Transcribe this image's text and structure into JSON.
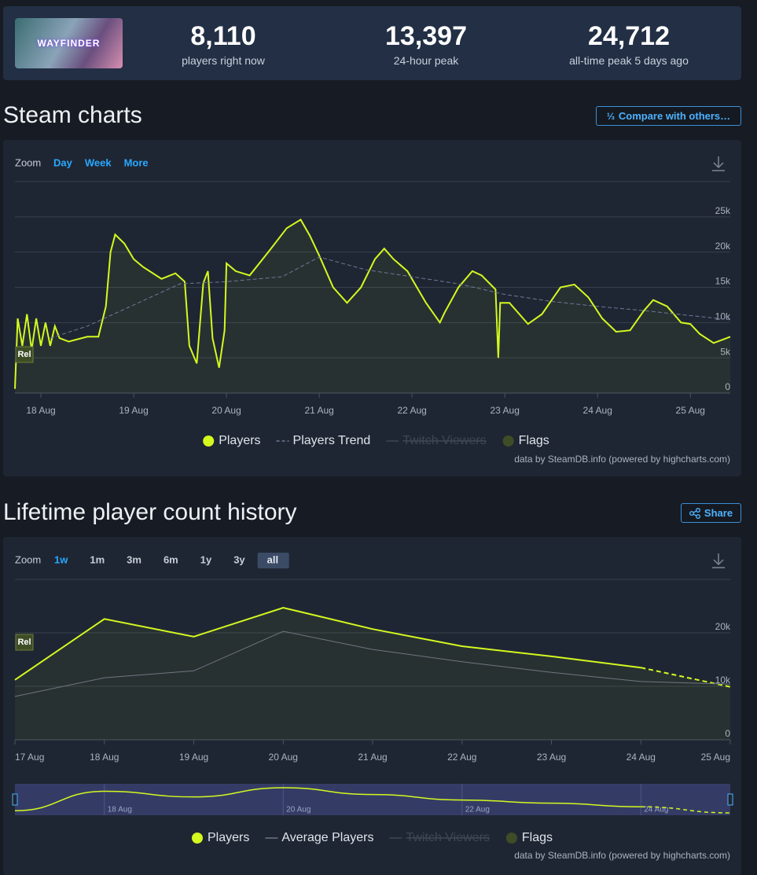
{
  "header": {
    "thumbnail_text": "WAYFINDER",
    "stats": [
      {
        "value": "8,110",
        "label": "players right now"
      },
      {
        "value": "13,397",
        "label": "24-hour peak"
      },
      {
        "value": "24,712",
        "label": "all-time peak 5 days ago"
      }
    ]
  },
  "sections": [
    {
      "title": "Steam charts",
      "button": "Compare with others…",
      "button_icon": "⅓"
    },
    {
      "title": "Lifetime player count history",
      "button": "Share"
    }
  ],
  "chart_data": [
    {
      "type": "line",
      "zoom_label": "Zoom",
      "zoom_options": [
        "Day",
        "Week",
        "More"
      ],
      "xlim": [
        -0.28,
        7.43
      ],
      "xticks": [
        {
          "value": 0,
          "label": "18 Aug"
        },
        {
          "value": 1,
          "label": "19 Aug"
        },
        {
          "value": 2,
          "label": "20 Aug"
        },
        {
          "value": 3,
          "label": "21 Aug"
        },
        {
          "value": 4,
          "label": "22 Aug"
        },
        {
          "value": 5,
          "label": "23 Aug"
        },
        {
          "value": 6,
          "label": "24 Aug"
        },
        {
          "value": 7,
          "label": "25 Aug"
        }
      ],
      "ylim": [
        0,
        30000
      ],
      "yticks": [
        0,
        {
          "value": 5000,
          "label": "5k"
        },
        {
          "value": 10000,
          "label": "10k"
        },
        {
          "value": 15000,
          "label": "15k"
        },
        {
          "value": 20000,
          "label": "20k"
        },
        {
          "value": 25000,
          "label": "25k"
        }
      ],
      "grid": true,
      "flag": {
        "label": "Rel",
        "x": -0.28
      },
      "series": [
        {
          "name": "Players",
          "color": "#d4f91f",
          "x": [
            -0.28,
            -0.25,
            -0.2,
            -0.15,
            -0.1,
            -0.05,
            0,
            0.05,
            0.1,
            0.15,
            0.2,
            0.3,
            0.5,
            0.62,
            0.7,
            0.75,
            0.8,
            0.9,
            1,
            1.1,
            1.3,
            1.45,
            1.55,
            1.6,
            1.68,
            1.75,
            1.8,
            1.85,
            1.92,
            1.98,
            2,
            2.1,
            2.25,
            2.45,
            2.65,
            2.8,
            2.9,
            3,
            3.15,
            3.3,
            3.45,
            3.6,
            3.7,
            3.8,
            3.95,
            4.15,
            4.3,
            4.35,
            4.5,
            4.65,
            4.75,
            4.9,
            4.93,
            4.95,
            5.05,
            5.25,
            5.4,
            5.6,
            5.75,
            5.9,
            6.05,
            6.2,
            6.35,
            6.5,
            6.6,
            6.75,
            6.9,
            7,
            7.1,
            7.25,
            7.35,
            7.43
          ],
          "values": [
            600,
            10600,
            6700,
            11200,
            6100,
            10600,
            6700,
            10000,
            6700,
            9500,
            7800,
            7300,
            8000,
            8000,
            12300,
            20000,
            22500,
            21200,
            19000,
            17900,
            16200,
            17000,
            15800,
            6700,
            4200,
            15600,
            17300,
            7800,
            3600,
            8900,
            18400,
            17300,
            16700,
            20000,
            23400,
            24600,
            22300,
            19500,
            15000,
            12800,
            15000,
            19000,
            20500,
            19000,
            17300,
            12800,
            10000,
            11400,
            15000,
            17300,
            16700,
            14700,
            5000,
            12800,
            12800,
            9800,
            11200,
            15000,
            15400,
            13600,
            10600,
            8700,
            8900,
            11700,
            13200,
            12300,
            10000,
            9800,
            8400,
            7100,
            7600,
            8000
          ]
        },
        {
          "name": "Players Trend",
          "color": "#6b7a96",
          "dashed": true,
          "x": [
            0.1,
            0.5,
            1,
            1.5,
            2,
            2.6,
            3,
            3.5,
            4,
            4.5,
            5,
            5.5,
            6,
            6.5,
            7,
            7.43
          ],
          "values": [
            7800,
            9500,
            12500,
            15500,
            15800,
            16500,
            19300,
            17500,
            16500,
            15500,
            14000,
            13000,
            12300,
            11700,
            11000,
            10400
          ]
        }
      ],
      "legend_extra": [
        {
          "name": "Twitch Viewers",
          "hidden": true
        },
        {
          "name": "Flags",
          "color": "#3f4d26"
        }
      ],
      "credit": "data by SteamDB.info (powered by highcharts.com)"
    },
    {
      "type": "line",
      "zoom_label": "Zoom",
      "zoom_options": [
        "1w",
        "1m",
        "3m",
        "6m",
        "1y",
        "3y",
        "all"
      ],
      "zoom_selected": "all",
      "categories": [
        "17 Aug",
        "18 Aug",
        "19 Aug",
        "20 Aug",
        "21 Aug",
        "22 Aug",
        "23 Aug",
        "24 Aug",
        "25 Aug"
      ],
      "ylim": [
        0,
        30000
      ],
      "yticks": [
        0,
        {
          "value": 10000,
          "label": "10k"
        },
        {
          "value": 20000,
          "label": "20k"
        }
      ],
      "grid": true,
      "flag": {
        "label": "Rel",
        "x": 0
      },
      "series": [
        {
          "name": "Players",
          "color": "#d4f91f",
          "dashed_tail": true,
          "values": [
            11200,
            22600,
            19300,
            24700,
            20700,
            17500,
            15600,
            13500,
            9900
          ]
        },
        {
          "name": "Average Players",
          "color": "#6f7580",
          "values": [
            8100,
            11600,
            12900,
            20300,
            16900,
            14600,
            12600,
            10900,
            10400
          ]
        }
      ],
      "legend_extra": [
        {
          "name": "Twitch Viewers",
          "hidden": true
        },
        {
          "name": "Flags",
          "color": "#3f4d26"
        }
      ],
      "navigator_labels": [
        "18 Aug",
        "20 Aug",
        "22 Aug",
        "24 Aug"
      ],
      "credit": "data by SteamDB.info (powered by highcharts.com)"
    }
  ]
}
